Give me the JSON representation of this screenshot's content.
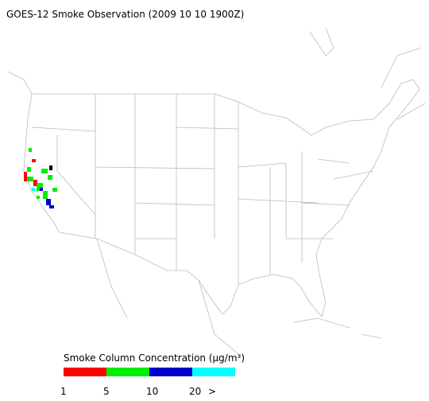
{
  "title": "GOES-12 Smoke Observation (2009 10 10  1900Z)",
  "legend": {
    "title": "Smoke Column Concentration (μg/m³)",
    "colors": [
      "#ff0000",
      "#00ee00",
      "#0000cc",
      "#00ffff"
    ],
    "labels": [
      "1",
      "5",
      "10",
      "20",
      ">"
    ]
  }
}
